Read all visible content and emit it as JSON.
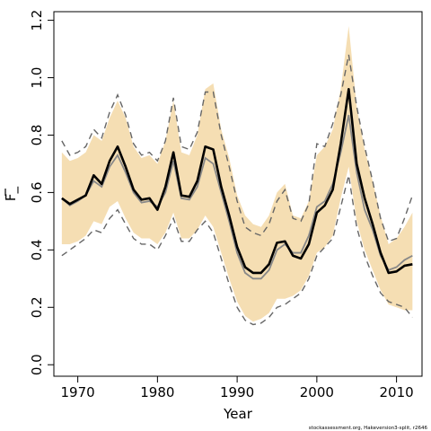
{
  "chart_data": {
    "type": "line",
    "xlabel": "Year",
    "ylabel": "F_",
    "xlim": [
      1967,
      2013.2
    ],
    "ylim": [
      -0.04,
      1.23
    ],
    "x_ticks": [
      1970,
      1980,
      1990,
      2000,
      2010
    ],
    "x_tick_labels": [
      "1970",
      "1980",
      "1990",
      "2000",
      "2010"
    ],
    "y_ticks": [
      0.0,
      0.2,
      0.4,
      0.6,
      0.8,
      1.0,
      1.2
    ],
    "y_tick_labels": [
      "0.0",
      "0.2",
      "0.4",
      "0.6",
      "0.8",
      "1.0",
      "1.2"
    ],
    "grid": false,
    "colors": {
      "band": "#f5deb3",
      "median": "#000000",
      "secondary": "#888888",
      "dashed": "#666666"
    },
    "years": [
      1968,
      1969,
      1970,
      1971,
      1972,
      1973,
      1974,
      1975,
      1976,
      1977,
      1978,
      1979,
      1980,
      1981,
      1982,
      1983,
      1984,
      1985,
      1986,
      1987,
      1988,
      1989,
      1990,
      1991,
      1992,
      1993,
      1994,
      1995,
      1996,
      1997,
      1998,
      1999,
      2000,
      2001,
      2002,
      2003,
      2004,
      2005,
      2006,
      2007,
      2008,
      2009,
      2010,
      2011,
      2012
    ],
    "series": [
      {
        "role": "median",
        "values": [
          0.58,
          0.56,
          0.575,
          0.59,
          0.66,
          0.63,
          0.71,
          0.76,
          0.69,
          0.61,
          0.575,
          0.58,
          0.54,
          0.62,
          0.74,
          0.59,
          0.585,
          0.64,
          0.76,
          0.75,
          0.62,
          0.52,
          0.41,
          0.34,
          0.32,
          0.32,
          0.35,
          0.425,
          0.43,
          0.38,
          0.37,
          0.42,
          0.53,
          0.555,
          0.61,
          0.77,
          0.96,
          0.7,
          0.58,
          0.49,
          0.39,
          0.32,
          0.325,
          0.345,
          0.35
        ]
      },
      {
        "role": "secondary-estimate",
        "values": [
          0.58,
          0.555,
          0.57,
          0.59,
          0.64,
          0.62,
          0.69,
          0.73,
          0.67,
          0.6,
          0.565,
          0.57,
          0.55,
          0.6,
          0.71,
          0.58,
          0.575,
          0.62,
          0.72,
          0.7,
          0.6,
          0.5,
          0.39,
          0.32,
          0.3,
          0.3,
          0.33,
          0.4,
          0.42,
          0.39,
          0.39,
          0.45,
          0.55,
          0.57,
          0.63,
          0.74,
          0.87,
          0.67,
          0.54,
          0.47,
          0.38,
          0.33,
          0.34,
          0.365,
          0.38
        ]
      },
      {
        "role": "band-upper",
        "values": [
          0.74,
          0.71,
          0.72,
          0.74,
          0.8,
          0.78,
          0.86,
          0.92,
          0.86,
          0.76,
          0.72,
          0.73,
          0.7,
          0.78,
          0.92,
          0.74,
          0.73,
          0.8,
          0.96,
          0.98,
          0.82,
          0.72,
          0.59,
          0.52,
          0.49,
          0.48,
          0.52,
          0.6,
          0.63,
          0.52,
          0.51,
          0.57,
          0.73,
          0.76,
          0.82,
          0.96,
          1.18,
          0.9,
          0.75,
          0.64,
          0.52,
          0.42,
          0.44,
          0.48,
          0.53
        ]
      },
      {
        "role": "band-lower",
        "values": [
          0.42,
          0.42,
          0.43,
          0.45,
          0.5,
          0.49,
          0.55,
          0.57,
          0.51,
          0.46,
          0.44,
          0.44,
          0.42,
          0.46,
          0.53,
          0.44,
          0.44,
          0.47,
          0.52,
          0.48,
          0.39,
          0.3,
          0.22,
          0.17,
          0.15,
          0.16,
          0.18,
          0.23,
          0.23,
          0.24,
          0.26,
          0.31,
          0.39,
          0.41,
          0.45,
          0.58,
          0.69,
          0.5,
          0.4,
          0.33,
          0.26,
          0.21,
          0.2,
          0.19,
          0.19
        ]
      },
      {
        "role": "dashed-upper",
        "values": [
          0.78,
          0.73,
          0.74,
          0.76,
          0.82,
          0.79,
          0.88,
          0.94,
          0.87,
          0.77,
          0.73,
          0.74,
          0.71,
          0.78,
          0.93,
          0.76,
          0.75,
          0.81,
          0.95,
          0.95,
          0.8,
          0.69,
          0.57,
          0.48,
          0.46,
          0.45,
          0.49,
          0.57,
          0.61,
          0.51,
          0.5,
          0.56,
          0.77,
          0.76,
          0.84,
          0.94,
          1.08,
          0.9,
          0.76,
          0.64,
          0.51,
          0.43,
          0.44,
          0.51,
          0.59
        ]
      },
      {
        "role": "dashed-lower",
        "values": [
          0.38,
          0.4,
          0.42,
          0.44,
          0.47,
          0.46,
          0.51,
          0.54,
          0.49,
          0.44,
          0.42,
          0.42,
          0.4,
          0.45,
          0.51,
          0.43,
          0.43,
          0.47,
          0.5,
          0.46,
          0.37,
          0.28,
          0.2,
          0.155,
          0.14,
          0.145,
          0.165,
          0.2,
          0.21,
          0.23,
          0.25,
          0.3,
          0.38,
          0.41,
          0.44,
          0.55,
          0.66,
          0.48,
          0.38,
          0.31,
          0.25,
          0.22,
          0.21,
          0.2,
          0.165
        ]
      }
    ],
    "caption": "stockassessment.org, Hakeversion3-split, r2646"
  }
}
